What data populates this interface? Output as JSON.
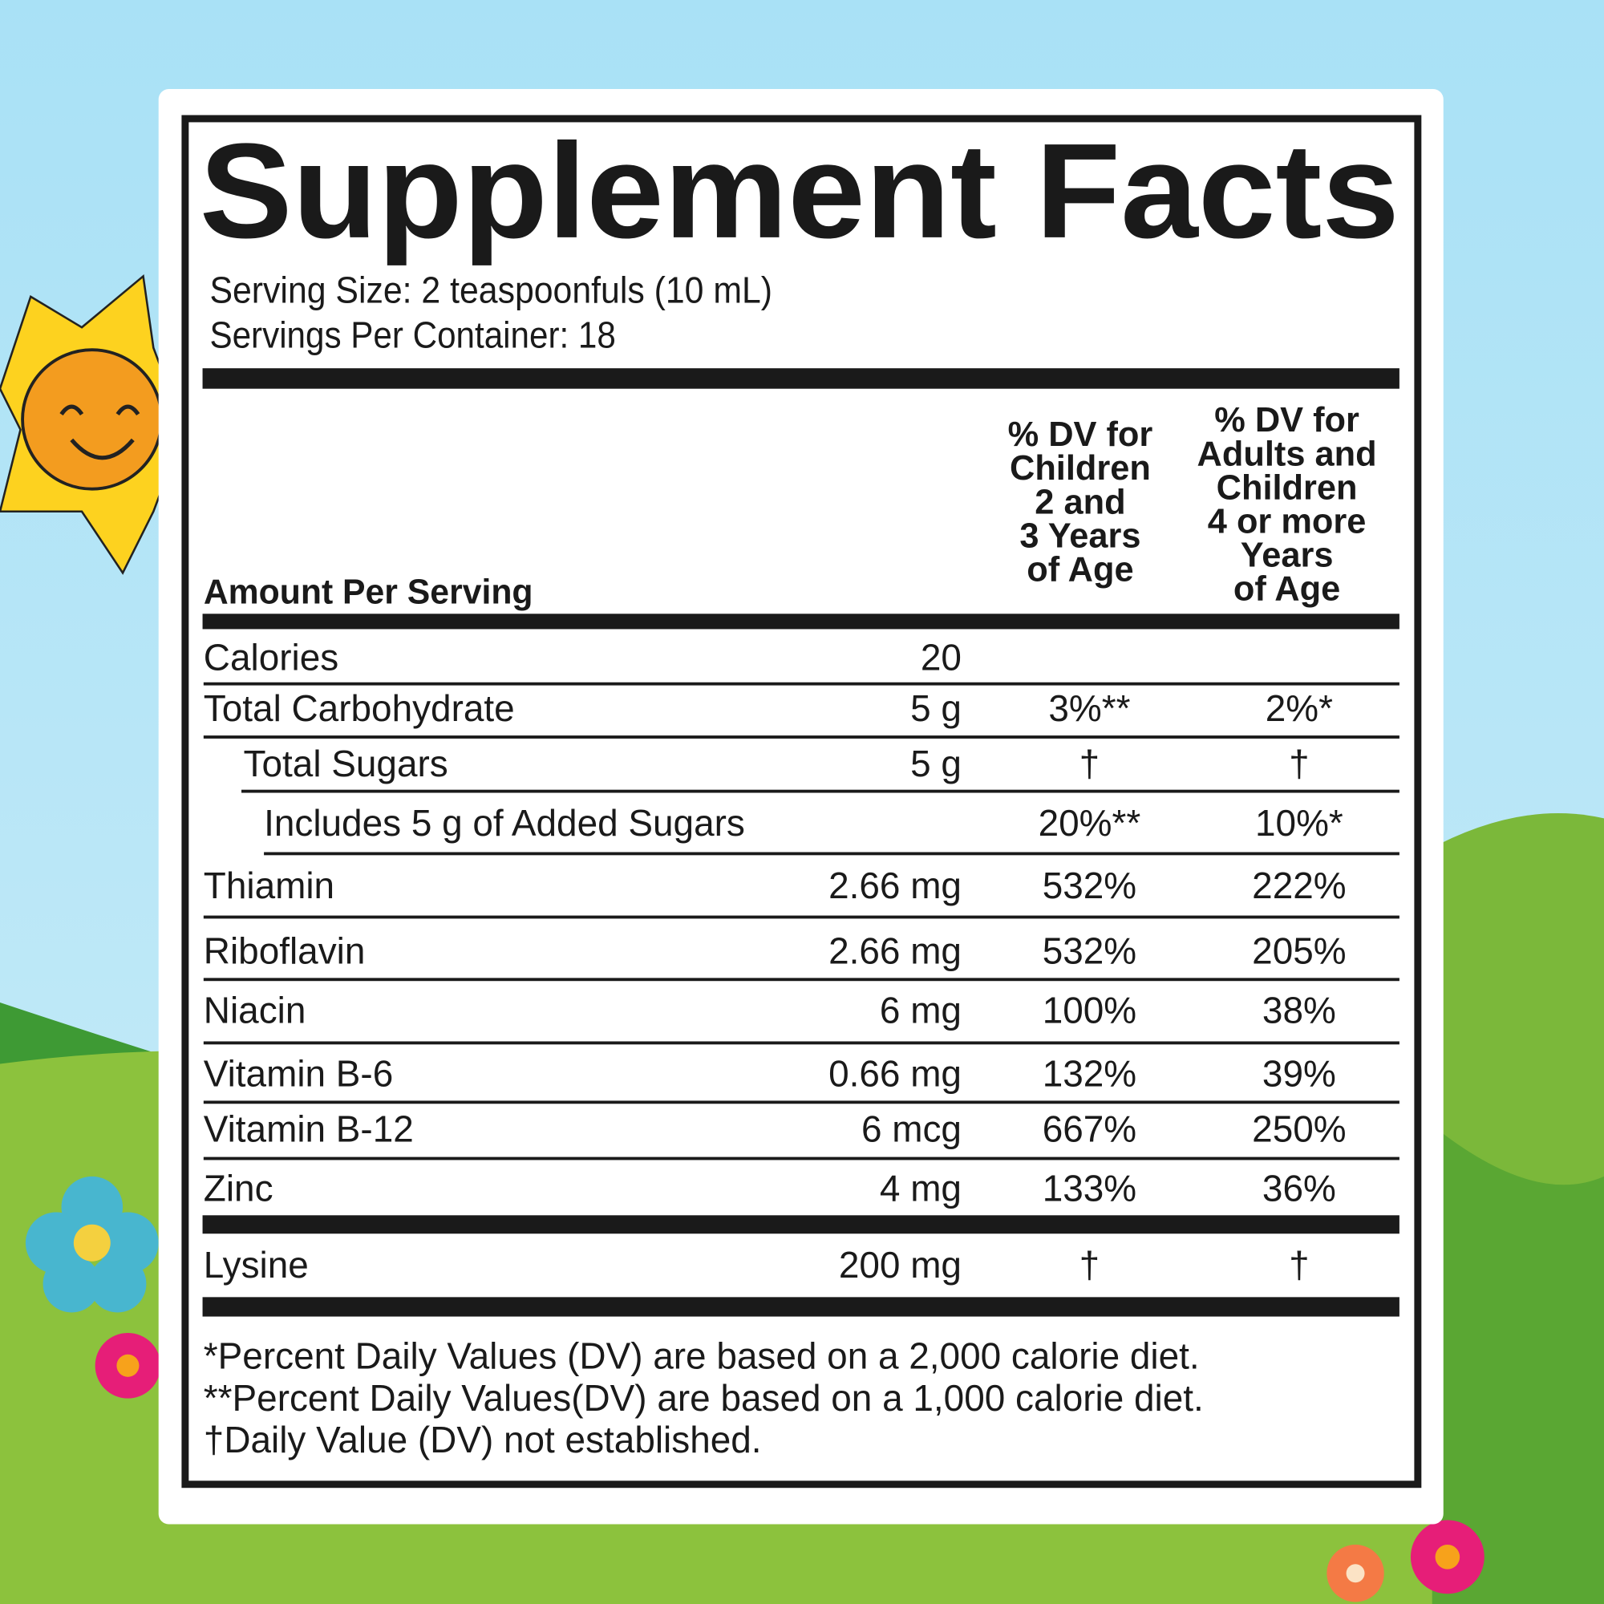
{
  "title": "Supplement Facts",
  "serving_size": "Serving Size: 2 teaspoonfuls (10 mL)",
  "servings_per_container": "Servings Per Container: 18",
  "table": {
    "amount_header": "Amount Per Serving",
    "column_children": [
      "% DV for",
      "Children",
      "2 and",
      "3 Years",
      "of Age"
    ],
    "column_adults": [
      "% DV for",
      "Adults and",
      "Children",
      "4 or more",
      "Years",
      "of Age"
    ],
    "rows": [
      {
        "name": "Calories",
        "amount": "20"
      },
      {
        "name": "Total Carbohydrate",
        "amount": "5 g",
        "dv_children": "3%**",
        "dv_adults": "2%*"
      },
      {
        "name": "Total Sugars",
        "amount": "5 g",
        "dv_children": "†",
        "dv_adults": "†"
      },
      {
        "name": "Includes 5 g of Added Sugars",
        "dv_children": "20%**",
        "dv_adults": "10%*"
      },
      {
        "name": "Thiamin",
        "amount": "2.66 mg",
        "dv_children": "532%",
        "dv_adults": "222%"
      },
      {
        "name": "Riboflavin",
        "amount": "2.66 mg",
        "dv_children": "532%",
        "dv_adults": "205%"
      },
      {
        "name": "Niacin",
        "amount": "6 mg",
        "dv_children": "100%",
        "dv_adults": "38%"
      },
      {
        "name": "Vitamin B-6",
        "amount": "0.66 mg",
        "dv_children": "132%",
        "dv_adults": "39%"
      },
      {
        "name": "Vitamin B-12",
        "amount": "6 mcg",
        "dv_children": "667%",
        "dv_adults": "250%"
      },
      {
        "name": "Zinc",
        "amount": "4 mg",
        "dv_children": "133%",
        "dv_adults": "36%"
      },
      {
        "name": "Lysine",
        "amount": "200 mg",
        "dv_children": "†",
        "dv_adults": "†"
      }
    ]
  },
  "footnotes": [
    "*Percent Daily Values (DV) are based on a 2,000 calorie diet.",
    "**Percent Daily Values(DV) are based on a 1,000 calorie diet.",
    "†Daily Value (DV) not established."
  ]
}
